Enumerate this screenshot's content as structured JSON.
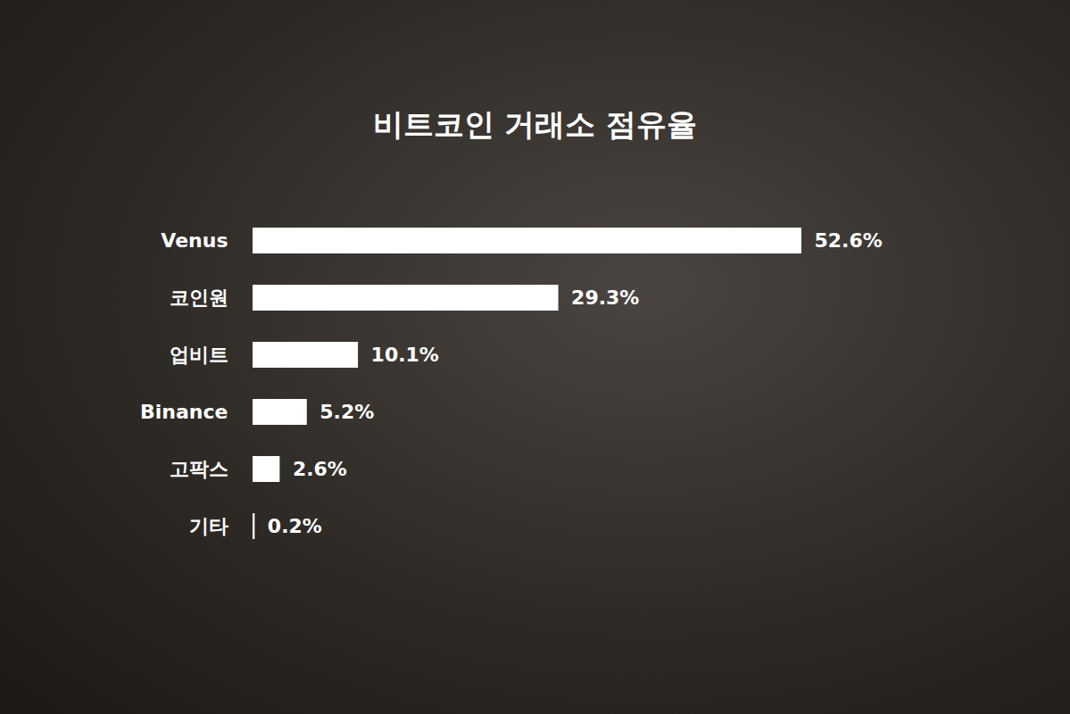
{
  "chart_data": {
    "type": "bar",
    "title": "비트코인 거래소 점유율",
    "orientation": "horizontal",
    "categories": [
      "Venus",
      "코인원",
      "업비트",
      "Binance",
      "고팍스",
      "기타"
    ],
    "values": [
      52.6,
      29.3,
      10.1,
      5.2,
      2.6,
      0.2
    ],
    "value_labels": [
      "52.6%",
      "29.3%",
      "10.1%",
      "5.2%",
      "2.6%",
      "0.2%"
    ],
    "color": "#ffffff",
    "data_labels": true,
    "tick_labels": "y",
    "grid": false
  }
}
